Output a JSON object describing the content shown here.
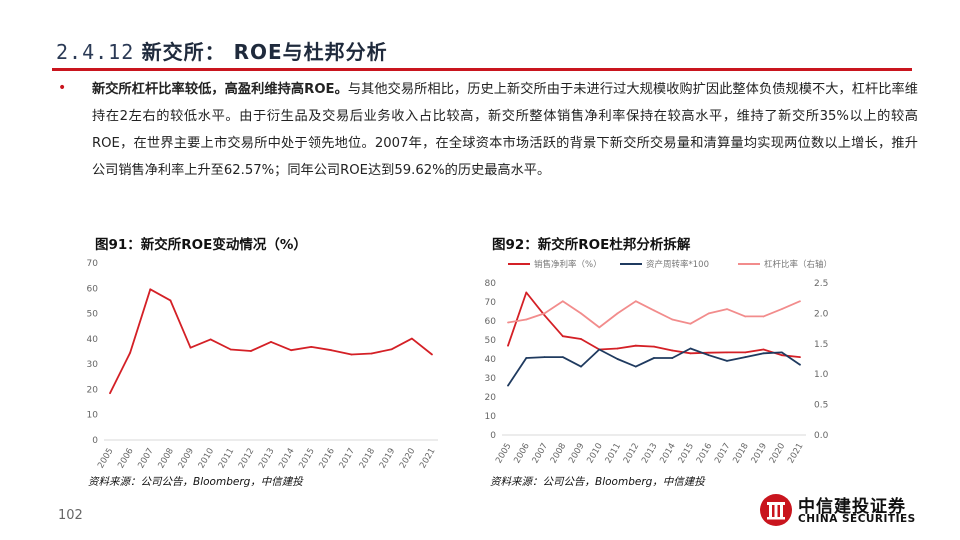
{
  "header": {
    "section_number": "2.4.12",
    "section_title_zh": "新交所：",
    "section_title_rest": " ROE与杜邦分析"
  },
  "body": {
    "bold_lead": "新交所杠杆比率较低，高盈利维持高ROE。",
    "text": "与其他交易所相比，历史上新交所由于未进行过大规模收购扩因此整体负债规模不大，杠杆比率维持在2左右的较低水平。由于衍生品及交易后业务收入占比较高，新交所整体销售净利率保持在较高水平，维持了新交所35%以上的较高ROE，在世界主要上市交易所中处于领先地位。2007年，在全球资本市场活跃的背景下新交所交易量和清算量均实现两位数以上增长，推升公司销售净利率上升至62.57%；同年公司ROE达到59.62%的历史最高水平。"
  },
  "fig1": {
    "title": "图91：新交所ROE变动情况（%）",
    "source": "资料来源：公司公告，Bloomberg，中信建投"
  },
  "fig2": {
    "title": "图92：新交所ROE杜邦分析拆解",
    "source": "资料来源：公司公告，Bloomberg，中信建投"
  },
  "footer": {
    "page_number": "102",
    "logo_cn": "中信建投证券",
    "logo_en": "CHINA SECURITIES"
  },
  "chart_data": [
    {
      "type": "line",
      "x": [
        "2005",
        "2006",
        "2007",
        "2008",
        "2009",
        "2010",
        "2011",
        "2012",
        "2013",
        "2014",
        "2015",
        "2016",
        "2017",
        "2018",
        "2019",
        "2020",
        "2021"
      ],
      "series": [
        {
          "values": [
            18.5,
            34.5,
            59.6,
            55.2,
            36.5,
            39.8,
            35.8,
            35.2,
            38.8,
            35.5,
            36.8,
            35.5,
            33.8,
            34.2,
            35.9,
            40.1,
            33.8
          ],
          "color": "#d42026"
        }
      ],
      "ylim": [
        0,
        70
      ],
      "yticks": [
        "0",
        "10",
        "20",
        "30",
        "40",
        "50",
        "60",
        "70"
      ],
      "grid": false
    },
    {
      "type": "line",
      "x": [
        "2005",
        "2006",
        "2007",
        "2008",
        "2009",
        "2010",
        "2011",
        "2012",
        "2013",
        "2014",
        "2015",
        "2016",
        "2017",
        "2018",
        "2019",
        "2020",
        "2021"
      ],
      "series": [
        {
          "name": "销售净利率（%）",
          "axis": "left",
          "color": "#d42026",
          "values": [
            47,
            75,
            63,
            52,
            50.5,
            45,
            45.5,
            47,
            46.5,
            44.5,
            43,
            43.3,
            43.5,
            43.5,
            45,
            42,
            41
          ]
        },
        {
          "name": "资产周转率*100",
          "axis": "left",
          "color": "#1f3a5f",
          "values": [
            26,
            40.5,
            41,
            41,
            36,
            45,
            40,
            36,
            40.5,
            40.5,
            45.5,
            42,
            39,
            41,
            43,
            43.5,
            37
          ]
        },
        {
          "name": "杠杆比率（右轴）",
          "axis": "right",
          "color": "#f28c8c",
          "values": [
            1.85,
            1.9,
            2.0,
            2.2,
            2.0,
            1.77,
            2.0,
            2.2,
            2.05,
            1.9,
            1.83,
            2.0,
            2.07,
            1.95,
            1.95,
            2.07,
            2.2
          ]
        }
      ],
      "ylim": [
        0,
        80
      ],
      "yticks": [
        "0",
        "10",
        "20",
        "30",
        "40",
        "50",
        "60",
        "70",
        "80"
      ],
      "y2lim": [
        0,
        2.5
      ],
      "y2ticks": [
        "0.0",
        "0.5",
        "1.0",
        "1.5",
        "2.0",
        "2.5"
      ],
      "legend": "top",
      "grid": false
    }
  ]
}
